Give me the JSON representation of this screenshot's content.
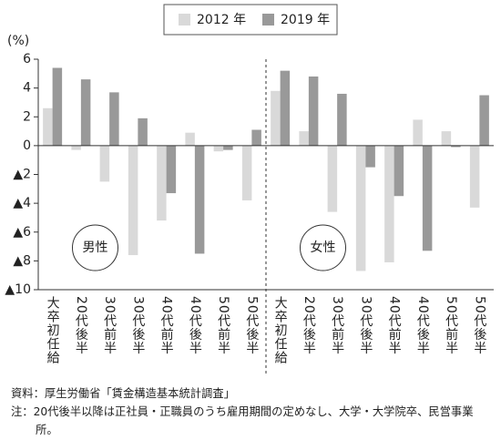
{
  "chart_data": {
    "type": "bar",
    "y_label": "(%)",
    "categories": [
      "大卒初任給",
      "20代後半",
      "30代前半",
      "30代後半",
      "40代前半",
      "40代後半",
      "50代前半",
      "50代後半"
    ],
    "series": [
      {
        "name": "2012 年",
        "color": "#d9d9d9"
      },
      {
        "name": "2019 年",
        "color": "#999999"
      }
    ],
    "panels": [
      {
        "label": "男性",
        "series": [
          {
            "values": [
              2.6,
              -0.3,
              -2.5,
              -7.6,
              -5.2,
              0.9,
              -0.4,
              -3.8
            ]
          },
          {
            "values": [
              5.4,
              4.6,
              3.7,
              1.9,
              -3.3,
              -7.5,
              -0.3,
              1.1
            ]
          }
        ]
      },
      {
        "label": "女性",
        "series": [
          {
            "values": [
              3.8,
              1.0,
              -4.6,
              -8.7,
              -8.1,
              1.8,
              1.0,
              -4.3
            ]
          },
          {
            "values": [
              5.2,
              4.8,
              3.6,
              -1.5,
              -3.5,
              -7.3,
              -0.1,
              3.5
            ]
          }
        ]
      }
    ],
    "ylim": [
      -10,
      6
    ],
    "yticks": [
      6,
      4,
      2,
      0,
      {
        "value": -2,
        "label": "▲2"
      },
      {
        "value": -4,
        "label": "▲4"
      },
      {
        "value": -6,
        "label": "▲6"
      },
      {
        "value": -8,
        "label": "▲8"
      },
      {
        "value": -10,
        "label": "▲10"
      }
    ],
    "source": "資料：厚生労働省「賃金構造基本統計調査」",
    "note": "注：20代後半以降は正社員・正職員のうち雇用期間の定めなし、大学・大学院卒、民営事業所。"
  }
}
